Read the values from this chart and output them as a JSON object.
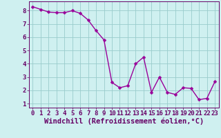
{
  "x": [
    0,
    1,
    2,
    3,
    4,
    5,
    6,
    7,
    8,
    9,
    10,
    11,
    12,
    13,
    14,
    15,
    16,
    17,
    18,
    19,
    20,
    21,
    22,
    23
  ],
  "y": [
    8.3,
    8.1,
    7.9,
    7.85,
    7.85,
    8.0,
    7.8,
    7.3,
    6.5,
    5.8,
    2.6,
    2.2,
    2.35,
    4.0,
    4.5,
    1.85,
    3.0,
    1.85,
    1.7,
    2.2,
    2.15,
    1.3,
    1.4,
    2.65
  ],
  "line_color": "#990099",
  "marker": "D",
  "marker_size": 2.5,
  "bg_color": "#cff0f0",
  "grid_color": "#99cccc",
  "xlabel": "Windchill (Refroidissement éolien,°C)",
  "xlim": [
    -0.5,
    23.5
  ],
  "ylim": [
    0.7,
    8.7
  ],
  "yticks": [
    1,
    2,
    3,
    4,
    5,
    6,
    7,
    8
  ],
  "xticks": [
    0,
    1,
    2,
    3,
    4,
    5,
    6,
    7,
    8,
    9,
    10,
    11,
    12,
    13,
    14,
    15,
    16,
    17,
    18,
    19,
    20,
    21,
    22,
    23
  ],
  "xlabel_color": "#660066",
  "tick_color": "#660066",
  "axis_color": "#660066",
  "line_width": 1.0,
  "font_size": 6.5,
  "xlabel_font_size": 7.5
}
